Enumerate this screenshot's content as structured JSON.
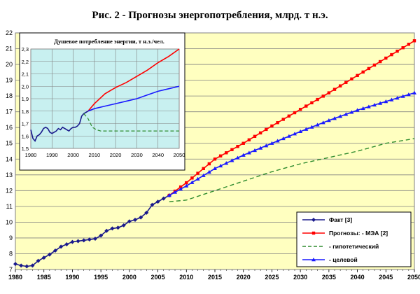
{
  "title": "Рис. 2 - Прогнозы энергопотребления, млрд. т н.э.",
  "chart_data": [
    {
      "type": "line",
      "title": "Рис. 2 - Прогнозы энергопотребления, млрд. т н.э.",
      "xlim": [
        1980,
        2050
      ],
      "ylim": [
        7,
        22
      ],
      "x_ticks": [
        1980,
        1985,
        1990,
        1995,
        2000,
        2005,
        2010,
        2015,
        2020,
        2025,
        2030,
        2035,
        2040,
        2045,
        2050
      ],
      "y_ticks": [
        7,
        8,
        9,
        10,
        11,
        12,
        13,
        14,
        15,
        16,
        17,
        18,
        19,
        20,
        21,
        22
      ],
      "grid": true,
      "plot_background": "#ffffc0",
      "legend_position": "bottom-right",
      "series": [
        {
          "name": "Факт [3]",
          "color": "#1a1a8c",
          "style": "solid",
          "marker": "diamond",
          "x": [
            1980,
            1981,
            1982,
            1983,
            1984,
            1985,
            1986,
            1987,
            1988,
            1989,
            1990,
            1991,
            1992,
            1993,
            1994,
            1995,
            1996,
            1997,
            1998,
            1999,
            2000,
            2001,
            2002,
            2003,
            2004,
            2005,
            2006,
            2007
          ],
          "y": [
            7.35,
            7.25,
            7.2,
            7.25,
            7.55,
            7.75,
            7.95,
            8.2,
            8.45,
            8.6,
            8.75,
            8.8,
            8.85,
            8.9,
            8.95,
            9.15,
            9.45,
            9.6,
            9.65,
            9.8,
            10.05,
            10.15,
            10.3,
            10.6,
            11.1,
            11.3,
            11.5,
            11.7
          ]
        },
        {
          "name": "Прогнозы:  - МЭА [2]",
          "color": "#ff0000",
          "style": "solid",
          "marker": "square",
          "x": [
            2007,
            2010,
            2015,
            2020,
            2025,
            2030,
            2035,
            2040,
            2045,
            2050
          ],
          "y": [
            11.7,
            12.5,
            14.0,
            15.0,
            16.1,
            17.15,
            18.2,
            19.3,
            20.4,
            21.5
          ]
        },
        {
          "name": "- гипотетический",
          "color": "#2e8b2e",
          "style": "dashed",
          "marker": "none",
          "x": [
            2007,
            2010,
            2015,
            2020,
            2025,
            2030,
            2035,
            2040,
            2045,
            2050
          ],
          "y": [
            11.3,
            11.4,
            12.0,
            12.6,
            13.2,
            13.7,
            14.1,
            14.5,
            15.0,
            15.3
          ]
        },
        {
          "name": "- целевой",
          "color": "#1a1aff",
          "style": "solid",
          "marker": "triangle",
          "x": [
            2007,
            2010,
            2015,
            2020,
            2025,
            2030,
            2035,
            2040,
            2045,
            2050
          ],
          "y": [
            11.7,
            12.3,
            13.4,
            14.25,
            15.0,
            15.75,
            16.45,
            17.1,
            17.65,
            18.2
          ]
        }
      ]
    },
    {
      "type": "line",
      "title": "Душевое потребление энергии, т н.э./чел.",
      "xlim": [
        1980,
        2050
      ],
      "ylim": [
        1.5,
        2.3
      ],
      "x_ticks": [
        1980,
        1990,
        2000,
        2010,
        2020,
        2030,
        2040,
        2050
      ],
      "y_ticks": [
        1.5,
        1.6,
        1.7,
        1.8,
        1.9,
        2.0,
        2.1,
        2.2,
        2.3
      ],
      "grid": true,
      "plot_background": "#c8f0f0",
      "series": [
        {
          "color": "#1a1a8c",
          "style": "solid",
          "x": [
            1980,
            1981,
            1982,
            1983,
            1984,
            1985,
            1986,
            1987,
            1988,
            1989,
            1990,
            1991,
            1992,
            1993,
            1994,
            1995,
            1996,
            1997,
            1998,
            1999,
            2000,
            2001,
            2002,
            2003,
            2004,
            2005,
            2006,
            2007
          ],
          "y": [
            1.65,
            1.58,
            1.56,
            1.6,
            1.61,
            1.63,
            1.66,
            1.67,
            1.66,
            1.63,
            1.62,
            1.63,
            1.64,
            1.66,
            1.65,
            1.67,
            1.66,
            1.65,
            1.64,
            1.66,
            1.67,
            1.67,
            1.68,
            1.7,
            1.76,
            1.78,
            1.79,
            1.8
          ]
        },
        {
          "color": "#ff0000",
          "style": "solid",
          "x": [
            2007,
            2010,
            2015,
            2020,
            2025,
            2030,
            2035,
            2040,
            2045,
            2050
          ],
          "y": [
            1.8,
            1.86,
            1.94,
            1.99,
            2.03,
            2.08,
            2.13,
            2.19,
            2.24,
            2.3
          ]
        },
        {
          "color": "#2e8b2e",
          "style": "dashed",
          "x": [
            2005,
            2007,
            2009,
            2011,
            2013,
            2020,
            2030,
            2040,
            2050
          ],
          "y": [
            1.78,
            1.74,
            1.67,
            1.65,
            1.64,
            1.64,
            1.64,
            1.64,
            1.64
          ]
        },
        {
          "color": "#1a1aff",
          "style": "solid",
          "x": [
            2007,
            2010,
            2015,
            2020,
            2025,
            2030,
            2035,
            2040,
            2045,
            2050
          ],
          "y": [
            1.8,
            1.82,
            1.84,
            1.86,
            1.88,
            1.9,
            1.93,
            1.96,
            1.98,
            2.0
          ]
        }
      ]
    }
  ]
}
